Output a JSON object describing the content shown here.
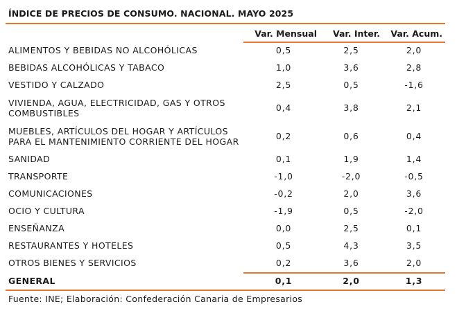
{
  "title": "ÍNDICE DE PRECIOS DE CONSUMO. NACIONAL. MAYO 2025",
  "headers": [
    "",
    "Var. Mensual",
    "Var. Inter.",
    "Var. Acum."
  ],
  "rows": [
    {
      "label": "ALIMENTOS Y BEBIDAS NO ALCOHÓLICAS",
      "mensual": "0,5",
      "inter": "2,5",
      "acum": "2,0"
    },
    {
      "label": "BEBIDAS ALCOHÓLICAS Y TABACO",
      "mensual": "1,0",
      "inter": "3,6",
      "acum": "2,8"
    },
    {
      "label": "VESTIDO Y CALZADO",
      "mensual": "2,5",
      "inter": "0,5",
      "acum": "-1,6"
    },
    {
      "label": "VIVIENDA, AGUA, ELECTRICIDAD, GAS Y OTROS COMBUSTIBLES",
      "mensual": "0,4",
      "inter": "3,8",
      "acum": "2,1"
    },
    {
      "label": "MUEBLES, ARTÍCULOS DEL HOGAR Y ARTÍCULOS PARA EL MANTENIMIENTO CORRIENTE DEL HOGAR",
      "mensual": "0,2",
      "inter": "0,6",
      "acum": "0,4"
    },
    {
      "label": "SANIDAD",
      "mensual": "0,1",
      "inter": "1,9",
      "acum": "1,4"
    },
    {
      "label": "TRANSPORTE",
      "mensual": "-1,0",
      "inter": "-2,0",
      "acum": "-0,5"
    },
    {
      "label": "COMUNICACIONES",
      "mensual": "-0,2",
      "inter": "2,0",
      "acum": "3,6"
    },
    {
      "label": "OCIO Y CULTURA",
      "mensual": "-1,9",
      "inter": "0,5",
      "acum": "-2,0"
    },
    {
      "label": "ENSEÑANZA",
      "mensual": "0,0",
      "inter": "2,5",
      "acum": "0,1"
    },
    {
      "label": "RESTAURANTES Y HOTELES",
      "mensual": "0,5",
      "inter": "4,3",
      "acum": "3,5"
    },
    {
      "label": "OTROS BIENES Y SERVICIOS",
      "mensual": "0,2",
      "inter": "3,6",
      "acum": "2,0"
    }
  ],
  "total": {
    "label": "GENERAL",
    "mensual": "0,1",
    "inter": "2,0",
    "acum": "1,3"
  },
  "footer": "Fuente: INE; Elaboración: Confederación Canaria de Empresarios",
  "colors": {
    "accent": "#e6782d",
    "text": "#1a1a1a"
  }
}
